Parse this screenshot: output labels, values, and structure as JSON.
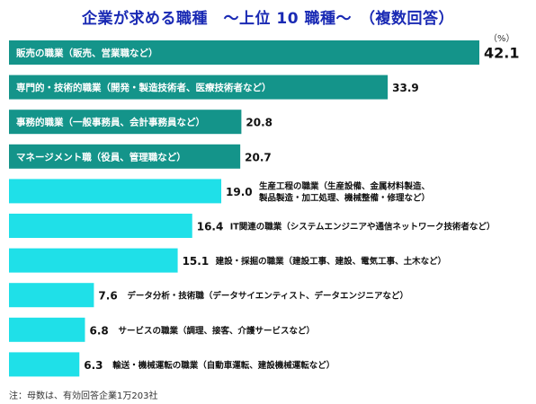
{
  "title": "企業が求める職種　～上位 10 職種～　（複数回答）",
  "unit": "（%）",
  "note": "注：母数は、有効回答企業1万203社",
  "colors": {
    "dark": "#14948a",
    "light": "#1fe0e8"
  },
  "chart_data": {
    "type": "bar",
    "orientation": "horizontal",
    "title": "企業が求める職種　～上位 10 職種～　（複数回答）",
    "unit": "%",
    "categories": [
      "販売の職業（販売、営業職など）",
      "専門的・技術的職業（開発・製造技術者、医療技術者など）",
      "事務的職業（一般事務員、会計事務員など）",
      "マネージメント職（役員、管理職など）",
      "生産工程の職業（生産設備、金属材料製造、製品製造・加工処理、機械整備・修理など）",
      "IT関連の職業（システムエンジニアや通信ネットワーク技術者など）",
      "建設・採掘の職業（建設工事、建設、電気工事、土木など）",
      "データ分析・技術職（データサイエンティスト、データエンジニアなど）",
      "サービスの職業（調理、接客、介護サービスなど）",
      "輸送・機械運転の職業（自動車運転、建設機械運転など）"
    ],
    "values": [
      42.1,
      33.9,
      20.8,
      20.7,
      19.0,
      16.4,
      15.1,
      7.6,
      6.8,
      6.3
    ],
    "value_labels": [
      "42.1",
      "33.9",
      "20.8",
      "20.7",
      "19.0",
      "16.4",
      "15.1",
      "7.6",
      "6.8",
      "6.3"
    ],
    "label_lines": [
      [
        "販売の職業（販売、営業職など）"
      ],
      [
        "専門的・技術的職業（開発・製造技術者、医療技術者など）"
      ],
      [
        "事務的職業（一般事務員、会計事務員など）"
      ],
      [
        "マネージメント職（役員、管理職など）"
      ],
      [
        "生産工程の職業（生産設備、金属材料製造、",
        "製品製造・加工処理、機械整備・修理など）"
      ],
      [
        "IT関連の職業（システムエンジニアや通信ネットワーク技術者など）"
      ],
      [
        "建設・採掘の職業（建設工事、建設、電気工事、土木など）"
      ],
      [
        "データ分析・技術職（データサイエンティスト、データエンジニアなど）"
      ],
      [
        "サービスの職業（調理、接客、介護サービスなど）"
      ],
      [
        "輸送・機械運転の職業（自動車運転、建設機械運転など）"
      ]
    ],
    "label_inside": [
      true,
      true,
      true,
      true,
      false,
      false,
      false,
      false,
      false,
      false
    ],
    "xlim": [
      0,
      42.1
    ],
    "grid": false,
    "legend": "none"
  }
}
